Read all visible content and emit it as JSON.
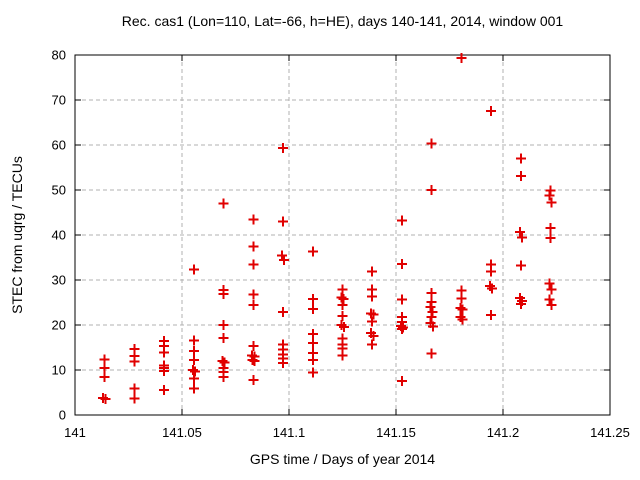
{
  "chart_data": {
    "type": "scatter",
    "title": "Rec. cas1 (Lon=110, Lat=-66, h=HE), days 140-141, 2014, window 001",
    "xlabel": "GPS time / Days of year 2014",
    "ylabel": "STEC from uqrg / TECUs",
    "xlim": [
      141,
      141.25
    ],
    "ylim": [
      0,
      80
    ],
    "grid": true,
    "legend": "none",
    "xticks": {
      "values": [
        141,
        141.05,
        141.1,
        141.15,
        141.2,
        141.25
      ],
      "labels": [
        "141",
        "141.05",
        "141.1",
        "141.15",
        "141.2",
        "141.25"
      ]
    },
    "yticks": {
      "values": [
        0,
        10,
        20,
        30,
        40,
        50,
        60,
        70,
        80
      ],
      "labels": [
        "0",
        "10",
        "20",
        "30",
        "40",
        "50",
        "60",
        "70",
        "80"
      ]
    },
    "marker": {
      "symbol": "plus",
      "color": "#e00000",
      "size": 10,
      "stroke_width": 2
    },
    "colors": {
      "frame": "#000000",
      "grid": "#b0b0b0",
      "text": "#000000",
      "background": "#ffffff"
    },
    "series": [
      {
        "name": "STEC from uqrg",
        "points": [
          [
            141.0139,
            12.3
          ],
          [
            141.0139,
            10.4
          ],
          [
            141.0139,
            8.4
          ],
          [
            141.0132,
            3.8
          ],
          [
            141.0143,
            3.6
          ],
          [
            141.0278,
            14.7
          ],
          [
            141.0278,
            13.1
          ],
          [
            141.0278,
            11.9
          ],
          [
            141.0278,
            5.9
          ],
          [
            141.0278,
            3.7
          ],
          [
            141.0417,
            16.4
          ],
          [
            141.0417,
            15.3
          ],
          [
            141.0417,
            13.9
          ],
          [
            141.0417,
            11.0
          ],
          [
            141.0417,
            10.4
          ],
          [
            141.0417,
            9.8
          ],
          [
            141.0417,
            5.6
          ],
          [
            141.0556,
            32.3
          ],
          [
            141.0556,
            16.6
          ],
          [
            141.0556,
            14.2
          ],
          [
            141.0556,
            12.2
          ],
          [
            141.0551,
            10.0
          ],
          [
            141.0561,
            9.7
          ],
          [
            141.0556,
            8.1
          ],
          [
            141.0556,
            5.9
          ],
          [
            141.0694,
            47.0
          ],
          [
            141.0694,
            27.8
          ],
          [
            141.0694,
            26.9
          ],
          [
            141.0694,
            20.0
          ],
          [
            141.0694,
            17.1
          ],
          [
            141.069,
            12.0
          ],
          [
            141.0699,
            11.7
          ],
          [
            141.0694,
            10.4
          ],
          [
            141.0694,
            9.6
          ],
          [
            141.0694,
            8.5
          ],
          [
            141.0833,
            43.4
          ],
          [
            141.0833,
            37.5
          ],
          [
            141.0833,
            33.4
          ],
          [
            141.0833,
            26.8
          ],
          [
            141.0833,
            24.5
          ],
          [
            141.0833,
            15.3
          ],
          [
            141.0828,
            13.2
          ],
          [
            141.0838,
            13.0
          ],
          [
            141.0829,
            12.2
          ],
          [
            141.0839,
            12.0
          ],
          [
            141.0833,
            7.8
          ],
          [
            141.0972,
            59.3
          ],
          [
            141.0972,
            43.0
          ],
          [
            141.0968,
            35.4
          ],
          [
            141.0977,
            34.4
          ],
          [
            141.0972,
            22.9
          ],
          [
            141.0972,
            15.7
          ],
          [
            141.0972,
            14.6
          ],
          [
            141.0972,
            13.5
          ],
          [
            141.0972,
            12.6
          ],
          [
            141.0972,
            11.6
          ],
          [
            141.1111,
            36.3
          ],
          [
            141.1111,
            25.8
          ],
          [
            141.1111,
            23.6
          ],
          [
            141.1111,
            18.0
          ],
          [
            141.1111,
            16.0
          ],
          [
            141.1111,
            13.8
          ],
          [
            141.1111,
            12.2
          ],
          [
            141.1111,
            9.4
          ],
          [
            141.125,
            27.9
          ],
          [
            141.1245,
            26.1
          ],
          [
            141.1255,
            25.8
          ],
          [
            141.125,
            24.4
          ],
          [
            141.125,
            22.0
          ],
          [
            141.1246,
            20.0
          ],
          [
            141.1256,
            19.6
          ],
          [
            141.125,
            17.0
          ],
          [
            141.125,
            15.7
          ],
          [
            141.125,
            14.8
          ],
          [
            141.125,
            13.2
          ],
          [
            141.1389,
            31.9
          ],
          [
            141.1389,
            27.9
          ],
          [
            141.1389,
            26.3
          ],
          [
            141.1384,
            22.6
          ],
          [
            141.1394,
            22.3
          ],
          [
            141.1389,
            20.8
          ],
          [
            141.1384,
            18.2
          ],
          [
            141.1394,
            17.6
          ],
          [
            141.1389,
            15.7
          ],
          [
            141.1528,
            43.2
          ],
          [
            141.1528,
            33.6
          ],
          [
            141.1528,
            25.7
          ],
          [
            141.1528,
            21.8
          ],
          [
            141.1528,
            20.7
          ],
          [
            141.1523,
            19.8
          ],
          [
            141.1533,
            19.5
          ],
          [
            141.1528,
            19.1
          ],
          [
            141.1528,
            7.6
          ],
          [
            141.1667,
            60.3
          ],
          [
            141.1667,
            50.0
          ],
          [
            141.1667,
            27.1
          ],
          [
            141.1667,
            25.1
          ],
          [
            141.1662,
            24.0
          ],
          [
            141.1671,
            22.9
          ],
          [
            141.1667,
            21.8
          ],
          [
            141.1662,
            20.5
          ],
          [
            141.1672,
            19.7
          ],
          [
            141.1667,
            13.7
          ],
          [
            141.1806,
            79.3
          ],
          [
            141.1806,
            27.7
          ],
          [
            141.1806,
            25.9
          ],
          [
            141.1801,
            23.8
          ],
          [
            141.181,
            23.5
          ],
          [
            141.1801,
            21.8
          ],
          [
            141.1811,
            21.2
          ],
          [
            141.1944,
            67.6
          ],
          [
            141.1944,
            33.4
          ],
          [
            141.1944,
            31.9
          ],
          [
            141.194,
            28.7
          ],
          [
            141.1949,
            28.1
          ],
          [
            141.1944,
            22.2
          ],
          [
            141.2083,
            57.0
          ],
          [
            141.2083,
            53.1
          ],
          [
            141.2079,
            40.7
          ],
          [
            141.2088,
            39.5
          ],
          [
            141.2083,
            33.2
          ],
          [
            141.2079,
            26.0
          ],
          [
            141.2088,
            25.3
          ],
          [
            141.2083,
            24.7
          ],
          [
            141.2222,
            49.9
          ],
          [
            141.2218,
            48.8
          ],
          [
            141.2227,
            47.2
          ],
          [
            141.2222,
            41.6
          ],
          [
            141.2222,
            39.3
          ],
          [
            141.2218,
            29.2
          ],
          [
            141.2227,
            27.9
          ],
          [
            141.2218,
            25.7
          ],
          [
            141.2227,
            24.5
          ]
        ]
      }
    ]
  }
}
